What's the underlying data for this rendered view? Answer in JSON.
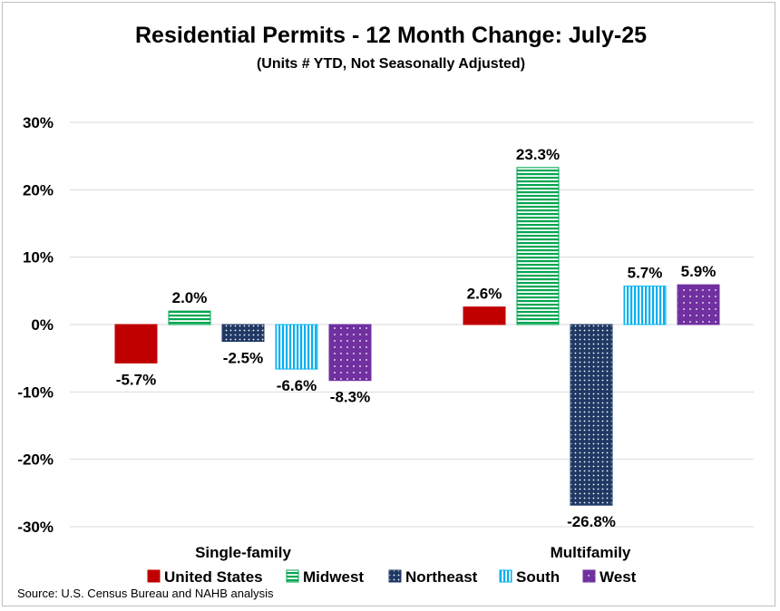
{
  "chart_data": {
    "type": "bar",
    "title": "Residential Permits - 12 Month Change:  July-25",
    "subtitle": "(Units # YTD, Not Seasonally Adjusted)",
    "categories": [
      "Single-family",
      "Multifamily"
    ],
    "series": [
      {
        "name": "United States",
        "values": [
          -5.7,
          2.6
        ],
        "labels": [
          "-5.7%",
          "2.6%"
        ],
        "color": "#c00000",
        "pattern": "solid"
      },
      {
        "name": "Midwest",
        "values": [
          2.0,
          23.3
        ],
        "labels": [
          "2.0%",
          "23.3%"
        ],
        "color": "#00a651",
        "pattern": "horizontal-lines"
      },
      {
        "name": "Northeast",
        "values": [
          -2.5,
          -26.8
        ],
        "labels": [
          "-2.5%",
          "-26.8%"
        ],
        "color": "#1f3864",
        "pattern": "dots"
      },
      {
        "name": "South",
        "values": [
          -6.6,
          5.7
        ],
        "labels": [
          "-6.6%",
          "5.7%"
        ],
        "color": "#00b0f0",
        "pattern": "vertical-lines"
      },
      {
        "name": "West",
        "values": [
          -8.3,
          5.9
        ],
        "labels": [
          "-8.3%",
          "5.9%"
        ],
        "color": "#7030a0",
        "pattern": "dots"
      }
    ],
    "ylim": [
      -30,
      30
    ],
    "yticks": [
      30,
      20,
      10,
      0,
      -10,
      -20,
      -30
    ],
    "ytick_labels": [
      "30%",
      "20%",
      "10%",
      "0%",
      "-10%",
      "-20%",
      "-30%"
    ],
    "grid": true,
    "legend_position": "bottom",
    "source": "Source: U.S. Census Bureau and NAHB analysis"
  }
}
